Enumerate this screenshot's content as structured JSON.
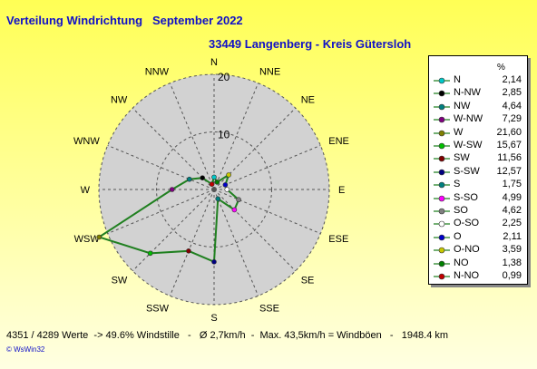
{
  "title": "Verteilung Windrichtung   September 2022",
  "subtitle": "33449 Langenberg - Kreis Gütersloh",
  "footer": "4351 / 4289 Werte  -> 49.6% Windstille   -   Ø 2,7km/h  -  Max. 43,5km/h = Windböen   -   1948.4 km",
  "credit": "© WsWin32",
  "colors": {
    "polygon": "#208020",
    "plotbg": "#d2d2d2",
    "title": "#1010c8"
  },
  "chart_data": {
    "type": "radar",
    "title": "Verteilung Windrichtung   September 2022",
    "subtitle": "33449 Langenberg - Kreis Gütersloh",
    "unit": "%",
    "rmax": 20,
    "ticks": [
      "10",
      "20"
    ],
    "tick_values": [
      10,
      20
    ],
    "directions": [
      "N",
      "NNE",
      "NE",
      "ENE",
      "E",
      "ESE",
      "SE",
      "SSE",
      "S",
      "SSW",
      "SW",
      "WSW",
      "W",
      "WNW",
      "NW",
      "NNW"
    ],
    "values": [
      2.14,
      1.38,
      3.59,
      2.11,
      2.25,
      4.62,
      4.99,
      1.75,
      12.57,
      11.56,
      15.67,
      21.6,
      7.29,
      4.64,
      2.85,
      0.99
    ],
    "point_colors": [
      "#00c8c8",
      "#008000",
      "#c8c800",
      "#0000c8",
      "#ffffff",
      "#808080",
      "#ff00ff",
      "#008080",
      "#000080",
      "#800000",
      "#00c000",
      "#808000",
      "#800080",
      "#008080",
      "#000000",
      "#c00000"
    ],
    "legend": [
      {
        "name": "N",
        "value": "2,14",
        "color": "#00c8c8"
      },
      {
        "name": "N-NW",
        "value": "2,85",
        "color": "#000000"
      },
      {
        "name": "NW",
        "value": "4,64",
        "color": "#008080"
      },
      {
        "name": "W-NW",
        "value": "7,29",
        "color": "#800080"
      },
      {
        "name": "W",
        "value": "21,60",
        "color": "#808000"
      },
      {
        "name": "W-SW",
        "value": "15,67",
        "color": "#00c000"
      },
      {
        "name": "SW",
        "value": "11,56",
        "color": "#800000"
      },
      {
        "name": "S-SW",
        "value": "12,57",
        "color": "#000080"
      },
      {
        "name": "S",
        "value": "1,75",
        "color": "#008080"
      },
      {
        "name": "S-SO",
        "value": "4,99",
        "color": "#ff00ff"
      },
      {
        "name": "SO",
        "value": "4,62",
        "color": "#808080"
      },
      {
        "name": "O-SO",
        "value": "2,25",
        "color": "#ffffff"
      },
      {
        "name": "O",
        "value": "2,11",
        "color": "#0000c8"
      },
      {
        "name": "O-NO",
        "value": "3,59",
        "color": "#c8c800"
      },
      {
        "name": "NO",
        "value": "1,38",
        "color": "#008000"
      },
      {
        "name": "N-NO",
        "value": "0,99",
        "color": "#c00000"
      }
    ],
    "legend_header": "%",
    "legend_position": "right",
    "grid": true
  }
}
